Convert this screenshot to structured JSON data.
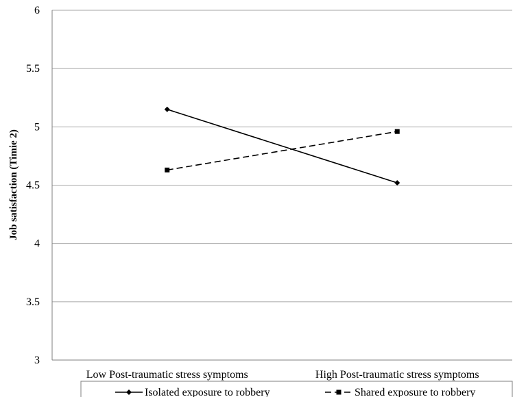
{
  "chart_data": {
    "type": "line",
    "title": "",
    "xlabel": "",
    "ylabel": "Job satisfaction (Timie 2)",
    "categories": [
      "Low Post-traumatic stress symptoms",
      "High Post-traumatic stress symptoms"
    ],
    "ylim": [
      3,
      6
    ],
    "yticks": [
      "3",
      "3.5",
      "4",
      "4.5",
      "5",
      "5.5",
      "6"
    ],
    "grid": true,
    "legend_position": "bottom",
    "series": [
      {
        "name": "Isolated exposure to robbery",
        "values": [
          5.15,
          4.52
        ],
        "line_style": "solid",
        "marker": "diamond",
        "color": "#000000"
      },
      {
        "name": "Shared exposure to robbery",
        "values": [
          4.63,
          4.96
        ],
        "line_style": "dashed",
        "marker": "square",
        "color": "#000000"
      }
    ]
  }
}
